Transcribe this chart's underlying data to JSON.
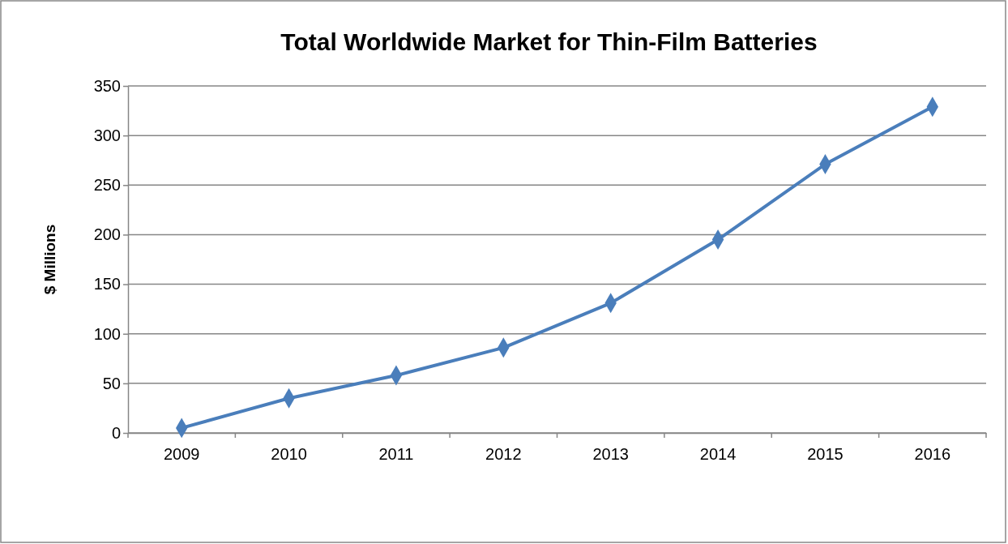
{
  "chart_data": {
    "type": "line",
    "title": "Total Worldwide Market for Thin-Film Batteries",
    "ylabel": "$ Millions",
    "categories": [
      "2009",
      "2010",
      "2011",
      "2012",
      "2013",
      "2014",
      "2015",
      "2016"
    ],
    "series": [
      {
        "color": "#4a7ebb",
        "values": [
          5,
          35,
          58,
          86,
          131,
          195,
          271,
          329
        ]
      }
    ],
    "ylim": [
      0,
      350
    ],
    "yticks": [
      0,
      50,
      100,
      150,
      200,
      250,
      300,
      350
    ],
    "grid": "y",
    "marker": "diamond",
    "line_style": "solid"
  }
}
